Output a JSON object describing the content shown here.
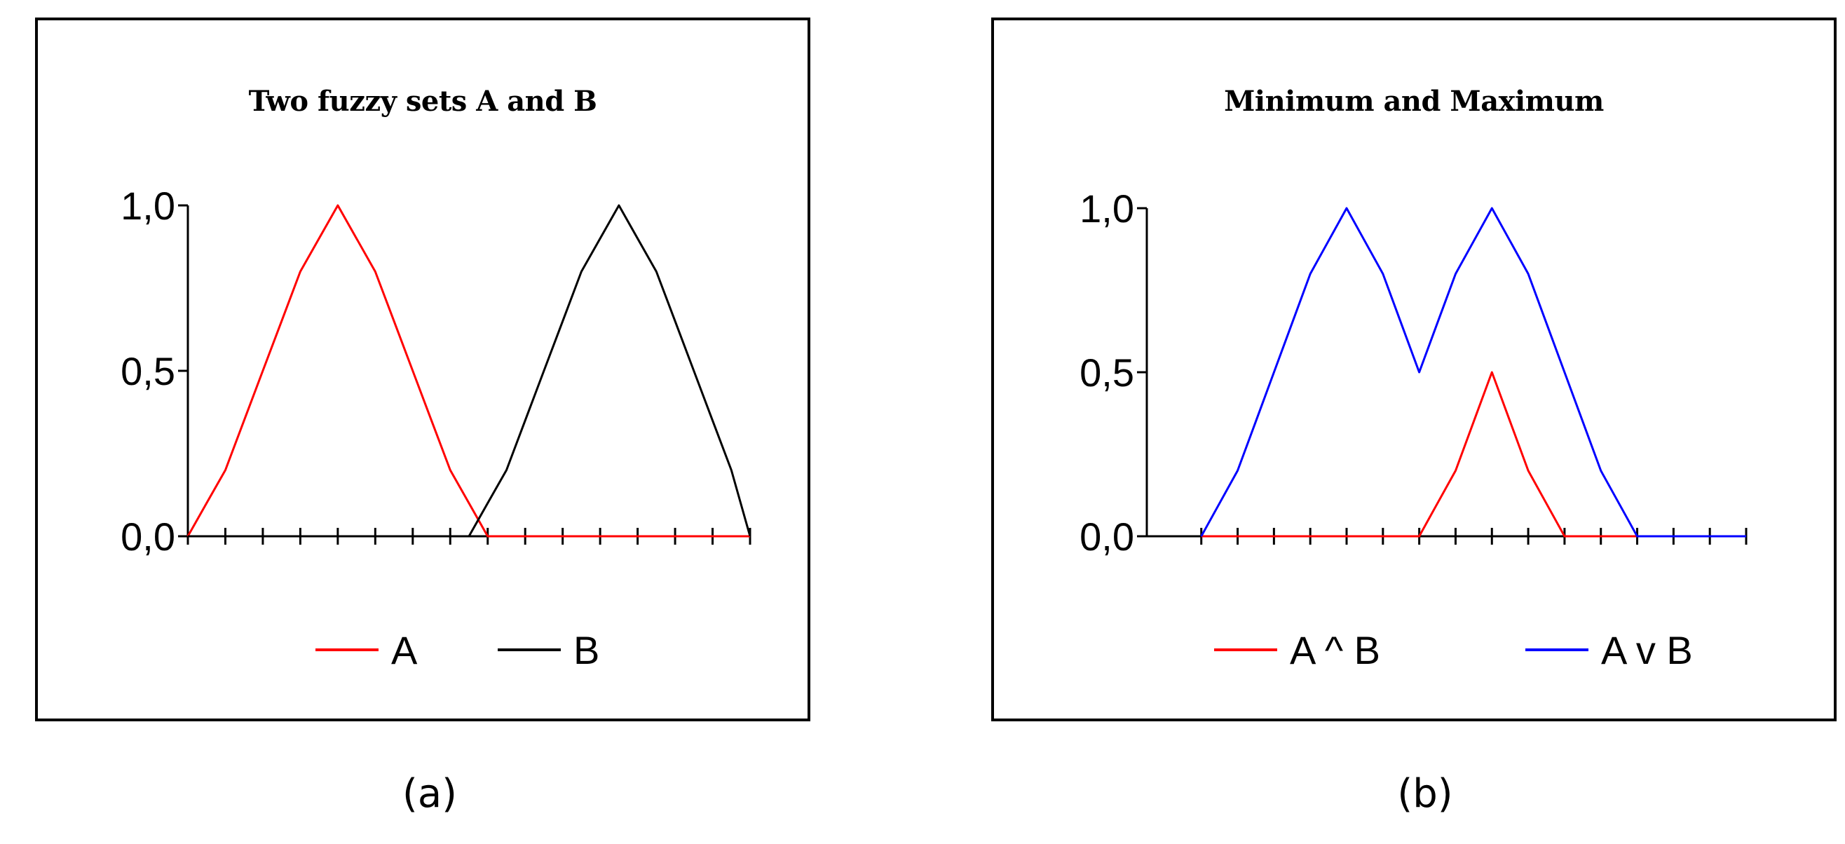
{
  "chart_data": [
    {
      "type": "line",
      "title": "Two fuzzy sets A and B",
      "caption": "(a)",
      "x": [
        0,
        1,
        2,
        3,
        4,
        5,
        6,
        7,
        8,
        9,
        10,
        11,
        12,
        13,
        14,
        15,
        16,
        17,
        18,
        19,
        20,
        21,
        22,
        23,
        24,
        25,
        26,
        27,
        28,
        29,
        30
      ],
      "yticks": [
        "0,0",
        "0,5",
        "1,0"
      ],
      "ylim": [
        0,
        1
      ],
      "xlim": [
        0,
        30
      ],
      "legend_position": "bottom",
      "series": [
        {
          "name": "A",
          "color": "#ff0000",
          "values": [
            0.0,
            0.1,
            0.2,
            0.35,
            0.5,
            0.65,
            0.8,
            0.9,
            1.0,
            0.9,
            0.8,
            0.65,
            0.5,
            0.35,
            0.2,
            0.1,
            0.0,
            0,
            0,
            0,
            0,
            0,
            0,
            0,
            0,
            0,
            0,
            0,
            0,
            0,
            0
          ]
        },
        {
          "name": "B",
          "color": "#000000",
          "values": [
            0,
            0,
            0,
            0,
            0,
            0,
            0,
            0,
            0,
            0,
            0,
            0,
            0,
            0,
            0,
            0.0,
            0.1,
            0.2,
            0.35,
            0.5,
            0.65,
            0.8,
            0.9,
            1.0,
            0.9,
            0.8,
            0.65,
            0.5,
            0.35,
            0.2,
            0.0
          ]
        }
      ]
    },
    {
      "type": "line",
      "title": "Minimum and Maximum",
      "caption": "(b)",
      "x": [
        0,
        1,
        2,
        3,
        4,
        5,
        6,
        7,
        8,
        9,
        10,
        11,
        12,
        13,
        14,
        15,
        16,
        17,
        18,
        19,
        20,
        21,
        22,
        23,
        24,
        25,
        26,
        27,
        28,
        29,
        30
      ],
      "yticks": [
        "0,0",
        "0,5",
        "1,0"
      ],
      "ylim": [
        0,
        1
      ],
      "xlim": [
        -3,
        30
      ],
      "legend_position": "bottom",
      "series": [
        {
          "name": "A ^ B",
          "color": "#ff0000",
          "values": [
            0,
            0,
            0,
            0,
            0,
            0,
            0,
            0,
            0,
            0,
            0,
            0,
            0.0,
            0.1,
            0.2,
            0.35,
            0.5,
            0.35,
            0.2,
            0.1,
            0.0,
            0,
            0,
            0,
            0,
            0,
            0,
            0,
            0,
            0,
            0
          ]
        },
        {
          "name": "A v B",
          "color": "#0000ff",
          "values": [
            0.0,
            0.1,
            0.2,
            0.35,
            0.5,
            0.65,
            0.8,
            0.9,
            1.0,
            0.9,
            0.8,
            0.65,
            0.5,
            0.65,
            0.8,
            0.9,
            1.0,
            0.9,
            0.8,
            0.65,
            0.5,
            0.35,
            0.2,
            0.1,
            0.0,
            0,
            0,
            0,
            0,
            0,
            0
          ]
        }
      ]
    }
  ]
}
